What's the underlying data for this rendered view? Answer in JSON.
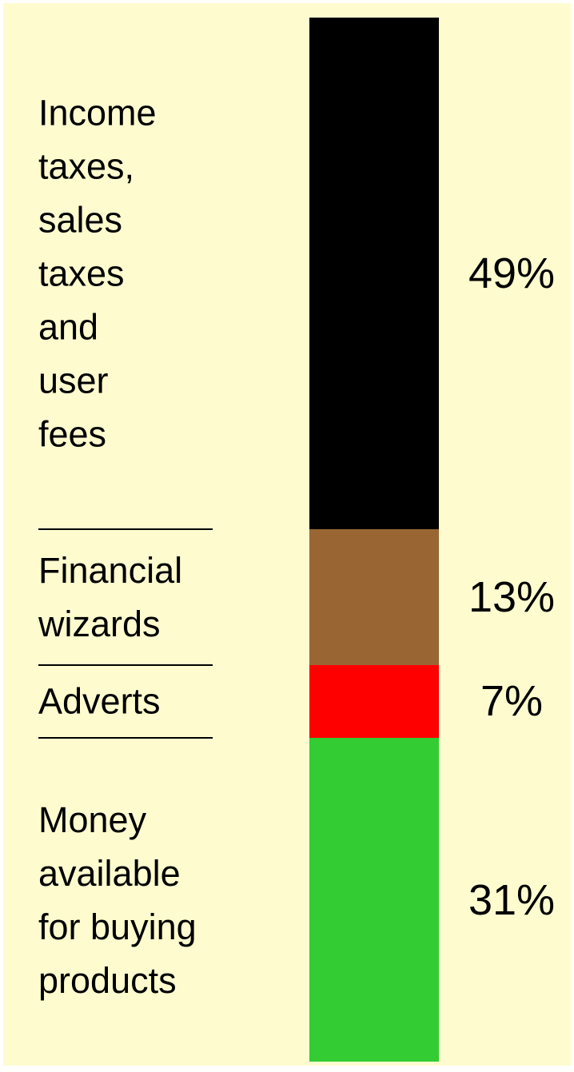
{
  "chart_data": {
    "type": "stacked_bar",
    "categories": [
      "Income\ntaxes,\nsales\ntaxes\nand\nuser\nfees",
      "Financial\nwizards",
      "Adverts",
      "Money\navailable\nfor buying\nproducts"
    ],
    "values": [
      49,
      13,
      7,
      31
    ],
    "value_labels": [
      "49%",
      "13%",
      "7%",
      "31%"
    ],
    "colors": [
      "#000000",
      "#996633",
      "#ff0000",
      "#33cc33"
    ]
  }
}
